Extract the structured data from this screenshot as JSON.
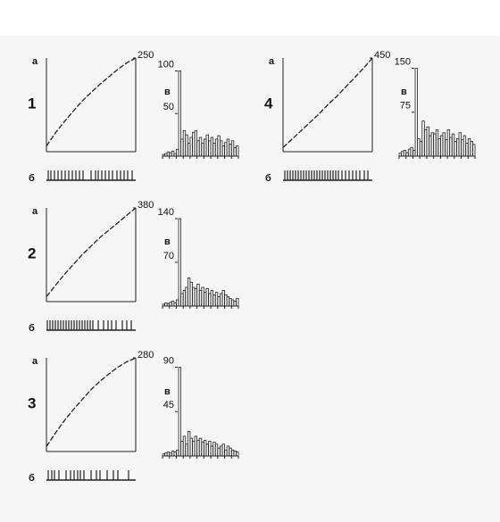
{
  "chart_data": [
    {
      "panel": "1",
      "curve": {
        "type": "line",
        "label": "а",
        "values": [
          15,
          50,
          80,
          108,
          135,
          158,
          180,
          200,
          220,
          237,
          250
        ],
        "ylim": [
          0,
          250
        ],
        "yticks": [
          250
        ],
        "color": "#222"
      },
      "raster": {
        "type": "event",
        "label": "б",
        "x": [
          2,
          5,
          9,
          13,
          17,
          21,
          25,
          29,
          33,
          37,
          41,
          50,
          55,
          58,
          62,
          66,
          70,
          74,
          79,
          83,
          87,
          91,
          96
        ],
        "xlim": [
          0,
          100
        ]
      },
      "histogram": {
        "type": "bar",
        "label": "в",
        "values": [
          2,
          3,
          5,
          4,
          6,
          3,
          8,
          100,
          20,
          30,
          25,
          15,
          22,
          28,
          30,
          18,
          22,
          15,
          20,
          25,
          18,
          22,
          15,
          20,
          24,
          18,
          12,
          16,
          20,
          14,
          18,
          10,
          12
        ],
        "ylim": [
          0,
          110
        ],
        "yticks": [
          50,
          100
        ]
      }
    },
    {
      "panel": "2",
      "curve": {
        "type": "line",
        "label": "а",
        "values": [
          20,
          65,
          110,
          150,
          190,
          225,
          260,
          290,
          320,
          350,
          380
        ],
        "ylim": [
          0,
          380
        ],
        "yticks": [
          380
        ],
        "color": "#222"
      },
      "raster": {
        "type": "event",
        "label": "б",
        "x": [
          1,
          4,
          7,
          10,
          13,
          16,
          19,
          22,
          25,
          28,
          31,
          34,
          37,
          40,
          43,
          46,
          49,
          52,
          58,
          64,
          69,
          73,
          78,
          85,
          90,
          95
        ],
        "xlim": [
          0,
          100
        ]
      },
      "histogram": {
        "type": "bar",
        "label": "в",
        "values": [
          3,
          5,
          4,
          6,
          8,
          5,
          10,
          140,
          20,
          25,
          30,
          45,
          38,
          30,
          28,
          35,
          25,
          30,
          22,
          28,
          20,
          25,
          18,
          22,
          15,
          20,
          25,
          18,
          15,
          12,
          10,
          8,
          12
        ],
        "ylim": [
          0,
          150
        ],
        "yticks": [
          70,
          140
        ]
      }
    },
    {
      "panel": "3",
      "curve": {
        "type": "line",
        "label": "а",
        "values": [
          15,
          55,
          92,
          125,
          155,
          185,
          210,
          232,
          252,
          268,
          280
        ],
        "ylim": [
          0,
          280
        ],
        "yticks": [
          280
        ],
        "color": "#222"
      },
      "raster": {
        "type": "event",
        "label": "б",
        "x": [
          2,
          6,
          9,
          14,
          22,
          27,
          31,
          35,
          38,
          42,
          50,
          56,
          60,
          68,
          75,
          80,
          92
        ],
        "xlim": [
          0,
          100
        ]
      },
      "histogram": {
        "type": "bar",
        "label": "в",
        "values": [
          2,
          3,
          4,
          3,
          5,
          4,
          6,
          90,
          15,
          20,
          12,
          25,
          18,
          15,
          20,
          16,
          18,
          14,
          16,
          12,
          15,
          10,
          14,
          12,
          8,
          10,
          12,
          6,
          10,
          8,
          6,
          5,
          4
        ],
        "ylim": [
          0,
          95
        ],
        "yticks": [
          45,
          90
        ]
      }
    },
    {
      "panel": "4",
      "curve": {
        "type": "line",
        "label": "а",
        "values": [
          20,
          60,
          100,
          140,
          180,
          225,
          265,
          310,
          355,
          400,
          450
        ],
        "ylim": [
          0,
          450
        ],
        "yticks": [
          450
        ],
        "color": "#222"
      },
      "raster": {
        "type": "event",
        "label": "б",
        "x": [
          2,
          5,
          8,
          11,
          14,
          17,
          20,
          23,
          26,
          29,
          32,
          35,
          38,
          41,
          44,
          47,
          50,
          53,
          56,
          59,
          62,
          66,
          70,
          74,
          78,
          82,
          86,
          91,
          95
        ],
        "xlim": [
          0,
          100
        ]
      },
      "histogram": {
        "type": "bar",
        "label": "в",
        "values": [
          5,
          8,
          10,
          6,
          12,
          15,
          10,
          150,
          30,
          25,
          60,
          45,
          50,
          35,
          40,
          38,
          45,
          30,
          35,
          40,
          28,
          45,
          32,
          38,
          25,
          30,
          40,
          28,
          35,
          22,
          30,
          25,
          20
        ],
        "ylim": [
          0,
          160
        ],
        "yticks": [
          75,
          150
        ]
      }
    }
  ]
}
